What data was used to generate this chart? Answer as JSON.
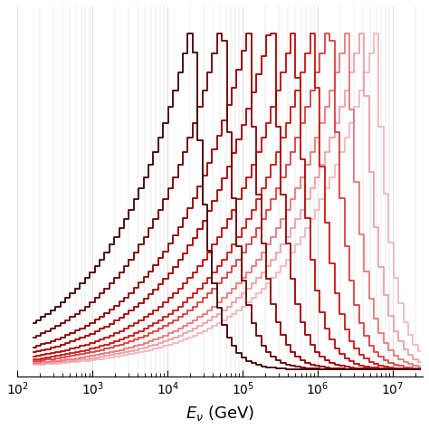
{
  "xlabel": "$E_{\\nu}$ (GeV)",
  "xmin": 150.0,
  "xmax": 25000000.0,
  "n_curves": 10,
  "colors": [
    "#f2b8c0",
    "#eda0aa",
    "#e87878",
    "#d94040",
    "#cc1515",
    "#bb0808",
    "#a00000",
    "#8b0000",
    "#6a0000",
    "#3d0000"
  ],
  "cutoff_energies": [
    6000000.0,
    4000000.0,
    2500000.0,
    1500000.0,
    900000.0,
    500000.0,
    250000.0,
    120000.0,
    55000.0,
    22000.0
  ],
  "low_slope": 0.95,
  "high_slope": 5.0,
  "n_bins": 80,
  "linewidth": 1.3,
  "grid_color": "#d0d0d0",
  "bg_color": "#ffffff"
}
